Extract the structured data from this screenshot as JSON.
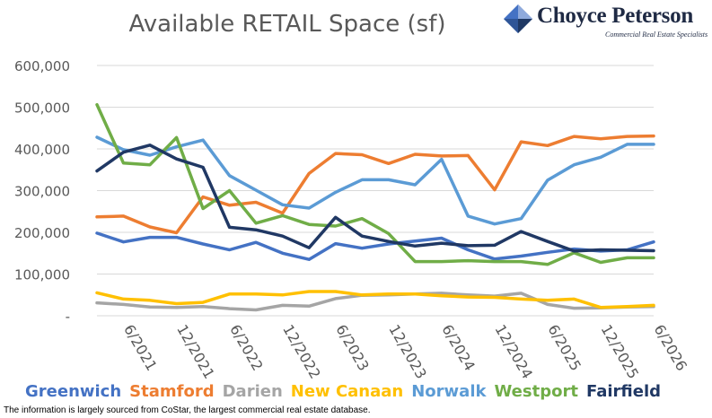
{
  "logo": {
    "name": "Choyce Peterson",
    "tagline": "Commercial Real Estate Specialists"
  },
  "footnote": "The information is largely sourced from CoStar, the largest commercial real estate database.",
  "chart_data": {
    "type": "line",
    "title": "Available RETAIL Space (sf)",
    "xlabel": "",
    "ylabel": "",
    "ylim": [
      0,
      600000
    ],
    "yticks": [
      "-",
      "100,000",
      "200,000",
      "300,000",
      "400,000",
      "500,000",
      "600,000"
    ],
    "ytick_values": [
      0,
      100000,
      200000,
      300000,
      400000,
      500000,
      600000
    ],
    "xtick_labels": [
      "6/2021",
      "12/2021",
      "6/2022",
      "12/2022",
      "6/2023",
      "12/2023",
      "6/2024",
      "12/2024",
      "6/2025",
      "12/2025",
      "6/2026"
    ],
    "x": [
      "3/2021",
      "6/2021",
      "9/2021",
      "12/2021",
      "3/2022",
      "6/2022",
      "9/2022",
      "12/2022",
      "3/2023",
      "6/2023",
      "9/2023",
      "12/2023",
      "3/2024",
      "6/2024",
      "9/2024",
      "12/2024",
      "3/2025",
      "6/2025",
      "9/2025",
      "12/2025",
      "3/2026",
      "6/2026"
    ],
    "grid": true,
    "legend_position": "bottom",
    "series": [
      {
        "name": "Greenwich",
        "color": "#4472c4",
        "values": [
          198000,
          177000,
          188000,
          188000,
          172000,
          158000,
          176000,
          150000,
          135000,
          173000,
          162000,
          172000,
          179000,
          186000,
          158000,
          136000,
          143000,
          152000,
          160000,
          155000,
          158000,
          177000
        ]
      },
      {
        "name": "Stamford",
        "color": "#ed7d31",
        "values": [
          237000,
          239000,
          213000,
          199000,
          285000,
          265000,
          272000,
          246000,
          341000,
          389000,
          386000,
          365000,
          387000,
          383000,
          384000,
          302000,
          417000,
          408000,
          430000,
          424000,
          430000,
          431000
        ]
      },
      {
        "name": "Darien",
        "color": "#a5a5a5",
        "values": [
          31000,
          27000,
          21000,
          20000,
          22000,
          17000,
          14000,
          25000,
          23000,
          41000,
          49000,
          50000,
          52000,
          54000,
          50000,
          47000,
          54000,
          27000,
          18000,
          19000,
          21000,
          22000
        ]
      },
      {
        "name": "New Canaan",
        "color": "#ffc000",
        "values": [
          55000,
          40000,
          37000,
          29000,
          32000,
          52000,
          52000,
          50000,
          58000,
          58000,
          50000,
          52000,
          52000,
          48000,
          45000,
          44000,
          40000,
          37000,
          40000,
          20000,
          22000,
          25000
        ]
      },
      {
        "name": "Norwalk",
        "color": "#5b9bd5",
        "values": [
          428000,
          398000,
          385000,
          405000,
          421000,
          336000,
          301000,
          266000,
          258000,
          296000,
          326000,
          326000,
          314000,
          375000,
          239000,
          220000,
          233000,
          325000,
          362000,
          380000,
          411000,
          411000
        ]
      },
      {
        "name": "Westport",
        "color": "#70ad47",
        "values": [
          506000,
          366000,
          362000,
          427000,
          257000,
          300000,
          222000,
          240000,
          219000,
          215000,
          233000,
          197000,
          130000,
          130000,
          132000,
          130000,
          130000,
          123000,
          151000,
          128000,
          139000,
          139000
        ]
      },
      {
        "name": "Fairfield",
        "color": "#203864",
        "values": [
          347000,
          392000,
          409000,
          376000,
          356000,
          212000,
          206000,
          191000,
          163000,
          236000,
          191000,
          178000,
          167000,
          174000,
          168000,
          169000,
          202000,
          178000,
          155000,
          158000,
          157000,
          156000
        ]
      }
    ]
  }
}
